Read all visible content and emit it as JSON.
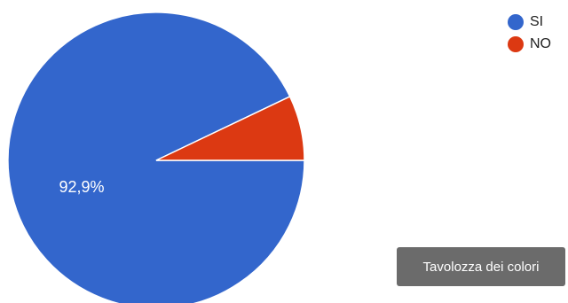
{
  "chart_data": {
    "type": "pie",
    "slices": [
      {
        "label": "SI",
        "value": 92.9,
        "color": "#3366cc",
        "display_label": "92,9%"
      },
      {
        "label": "NO",
        "value": 7.1,
        "color": "#dc3912",
        "display_label": ""
      }
    ],
    "legend_position": "top-right"
  },
  "palette_button": {
    "label": "Tavolozza dei colori"
  }
}
